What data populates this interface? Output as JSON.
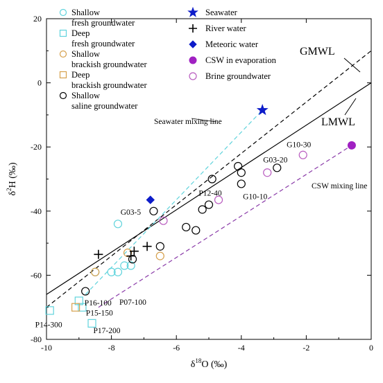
{
  "chart_data": {
    "type": "scatter",
    "xlabel": {
      "symbol": "δ",
      "sup": "18",
      "rest": "O (‰)"
    },
    "ylabel": {
      "symbol": "δ",
      "sup": "2",
      "rest": "H (‰)"
    },
    "xlim": [
      -10,
      0
    ],
    "ylim": [
      -80,
      20
    ],
    "xticks": [
      -10,
      -8,
      -6,
      -4,
      -2,
      0
    ],
    "yticks": [
      -80,
      -60,
      -40,
      -20,
      0,
      20
    ],
    "xtick_labels": [
      "-10",
      "-8",
      "-6",
      "-4",
      "-2",
      "0"
    ],
    "ytick_labels": [
      "-80",
      "-60",
      "-40",
      "-20",
      "0",
      "20"
    ],
    "series": [
      {
        "name": "Shallow fresh groundwater",
        "legend_lines": [
          "Shallow",
          "fresh groundwater"
        ],
        "marker": "circle",
        "color": "#5fd3dc",
        "points": [
          [
            -7.8,
            -44
          ],
          [
            -8.5,
            -59
          ],
          [
            -8.0,
            -59
          ],
          [
            -7.6,
            -57
          ],
          [
            -7.4,
            -57
          ],
          [
            -7.8,
            -59
          ]
        ]
      },
      {
        "name": "Deep fresh groundwater",
        "legend_lines": [
          "Deep",
          "fresh groundwater"
        ],
        "marker": "square",
        "color": "#5fd3dc",
        "points": [
          [
            -9.9,
            -71
          ],
          [
            -9.0,
            -68
          ],
          [
            -8.9,
            -70
          ],
          [
            -8.6,
            -75
          ]
        ]
      },
      {
        "name": "Shallow brackish groundwater",
        "legend_lines": [
          "Shallow",
          "brackish groundwater"
        ],
        "marker": "circle",
        "color": "#d6a04c",
        "points": [
          [
            -8.5,
            -59
          ],
          [
            -7.5,
            -53
          ],
          [
            -6.5,
            -54
          ]
        ]
      },
      {
        "name": "Deep brackish groundwater",
        "legend_lines": [
          "Deep",
          "brackish groundwater"
        ],
        "marker": "square",
        "color": "#d6a04c",
        "points": [
          [
            -9.1,
            -70
          ]
        ]
      },
      {
        "name": "Shallow saline groundwater",
        "legend_lines": [
          "Shallow",
          "saline groundwater"
        ],
        "marker": "circle",
        "color": "#000000",
        "points": [
          [
            -6.7,
            -40
          ],
          [
            -6.5,
            -51
          ],
          [
            -5.7,
            -45
          ],
          [
            -5.4,
            -46
          ],
          [
            -5.2,
            -39.5
          ],
          [
            -5.0,
            -38
          ],
          [
            -4.9,
            -30
          ],
          [
            -4.1,
            -26
          ],
          [
            -4.0,
            -28
          ],
          [
            -4.0,
            -31.5
          ],
          [
            -2.9,
            -26.5
          ],
          [
            -8.8,
            -65
          ],
          [
            -7.35,
            -55
          ]
        ]
      },
      {
        "name": "Seawater",
        "legend_lines": [
          "Seawater"
        ],
        "marker": "star",
        "color": "#0d1cc9",
        "points": [
          [
            -3.35,
            -8.5
          ]
        ]
      },
      {
        "name": "River water",
        "legend_lines": [
          "River water"
        ],
        "marker": "plus",
        "color": "#000000",
        "points": [
          [
            -8.4,
            -53.5
          ],
          [
            -7.3,
            -52.5
          ],
          [
            -7.4,
            -54
          ],
          [
            -6.9,
            -51
          ]
        ]
      },
      {
        "name": "Meteoric water",
        "legend_lines": [
          "Meteoric water"
        ],
        "marker": "diamond",
        "color": "#0d1cc9",
        "points": [
          [
            -6.8,
            -36.5
          ]
        ]
      },
      {
        "name": "CSW in evaporation",
        "legend_lines": [
          "CSW in evaporation"
        ],
        "marker": "filled-circle",
        "color": "#a021c2",
        "points": [
          [
            -0.6,
            -19.5
          ]
        ]
      },
      {
        "name": "Brine groundwater",
        "legend_lines": [
          "Brine groundwater"
        ],
        "marker": "circle",
        "color": "#b95cc0",
        "points": [
          [
            -6.4,
            -43
          ],
          [
            -4.7,
            -36.5
          ],
          [
            -3.2,
            -28
          ],
          [
            -2.1,
            -22.5
          ]
        ]
      }
    ],
    "lines": [
      {
        "name": "GMWL",
        "style": "dashed",
        "color": "#000000",
        "from": [
          -10,
          -70
        ],
        "to": [
          0,
          10
        ]
      },
      {
        "name": "LMWL",
        "style": "solid",
        "color": "#000000",
        "from": [
          -10,
          -66
        ],
        "to": [
          0,
          0
        ]
      },
      {
        "name": "Seawater mixing line",
        "style": "dashed",
        "color": "#5fd3dc",
        "from": [
          -8.8,
          -66
        ],
        "to": [
          -3.35,
          -8.5
        ]
      },
      {
        "name": "CSW mixing line",
        "style": "dashed",
        "color": "#8a3aa8",
        "from": [
          -8.4,
          -70
        ],
        "to": [
          -0.6,
          -19.5
        ]
      }
    ],
    "annotations": [
      {
        "text": "G03-5",
        "anchor": [
          -6.75,
          -40
        ]
      },
      {
        "text": "P12-40",
        "anchor": [
          -4.8,
          -36
        ]
      },
      {
        "text": "G03-20",
        "anchor": [
          -3.2,
          -27
        ]
      },
      {
        "text": "G10-30",
        "anchor": [
          -2.1,
          -22
        ]
      },
      {
        "text": "G10-10",
        "anchor": [
          -3.95,
          -33
        ]
      },
      {
        "text": "P07-100",
        "anchor": [
          -7.8,
          -61
        ]
      },
      {
        "text": "P16-100",
        "anchor": [
          -9.0,
          -68.5
        ]
      },
      {
        "text": "P15-150",
        "anchor": [
          -9.0,
          -70
        ]
      },
      {
        "text": "P14-300",
        "anchor": [
          -9.9,
          -71.5
        ]
      },
      {
        "text": "P17-200",
        "anchor": [
          -8.6,
          -75
        ]
      }
    ]
  }
}
